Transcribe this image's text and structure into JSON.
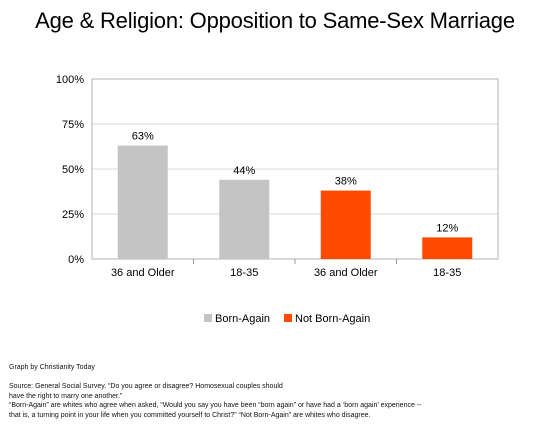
{
  "chart_data": {
    "type": "bar",
    "title": "Age & Religion: Opposition to Same-Sex Marriage",
    "xlabel": "",
    "ylabel": "",
    "ylim": [
      0,
      100
    ],
    "yticks": [
      "0%",
      "25%",
      "50%",
      "75%",
      "100%"
    ],
    "ytick_values": [
      0,
      25,
      50,
      75,
      100
    ],
    "categories": [
      "36 and Older",
      "18-35",
      "36 and Older",
      "18-35"
    ],
    "values": [
      63,
      44,
      38,
      12
    ],
    "value_labels": [
      "63%",
      "44%",
      "38%",
      "12%"
    ],
    "bar_groups": [
      "Born-Again",
      "Born-Again",
      "Not Born-Again",
      "Not Born-Again"
    ],
    "legend": [
      {
        "name": "Born-Again",
        "color": "#c4c4c4"
      },
      {
        "name": "Not Born-Again",
        "color": "#ff4a00"
      }
    ],
    "legend_position": "bottom",
    "grid": true
  },
  "footer": {
    "credit": "Graph by Christianity Today",
    "source_line1": "Source: General Social Survey. “Do you agree or disagree? Homosexual couples should",
    "source_line2": "have the right to marry one another.”",
    "def_line1": "“Born-Again” are whites who agree when asked, “Would you say you have been “born again” or have had a ‘born again’ experience --",
    "def_line2": "that is, a turning point in your life when you committed yourself to Christ?” “Not Born-Again” are whites who disagree."
  }
}
